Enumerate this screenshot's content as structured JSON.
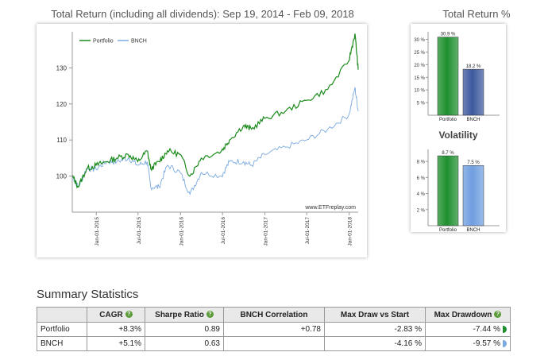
{
  "main_chart": {
    "title": "Total Return (including all dividends): Sep 19, 2014 - Feb 09, 2018",
    "watermark": "www.ETFreplay.com"
  },
  "side": {
    "total_return_title": "Total Return %",
    "volatility_title": "Volatility"
  },
  "chart_data": [
    {
      "type": "line",
      "title": "Total Return (including all dividends): Sep 19, 2014 - Feb 09, 2018",
      "x_ticks": [
        "Jan-01-2015",
        "Jul-01-2015",
        "Jan-01-2016",
        "Jul-01-2016",
        "Jan-01-2017",
        "Jul-01-2017",
        "Jan-01-2018"
      ],
      "y_ticks": [
        100,
        110,
        120,
        130
      ],
      "ylim": [
        90,
        140
      ],
      "xlim": [
        "2014-09-19",
        "2018-02-09"
      ],
      "legend": "top-left",
      "series": [
        {
          "name": "Portfolio",
          "color": "#1a8a1a",
          "points": [
            [
              "2014-09-19",
              100
            ],
            [
              "2014-10-15",
              97
            ],
            [
              "2014-11-20",
              102
            ],
            [
              "2014-12-31",
              103
            ],
            [
              "2015-02-15",
              104
            ],
            [
              "2015-03-31",
              105
            ],
            [
              "2015-05-20",
              106
            ],
            [
              "2015-06-30",
              104
            ],
            [
              "2015-08-10",
              107
            ],
            [
              "2015-08-25",
              102
            ],
            [
              "2015-09-30",
              104
            ],
            [
              "2015-11-05",
              107
            ],
            [
              "2015-12-31",
              106
            ],
            [
              "2016-02-11",
              100
            ],
            [
              "2016-03-31",
              105
            ],
            [
              "2016-06-27",
              107
            ],
            [
              "2016-07-31",
              110
            ],
            [
              "2016-09-30",
              114
            ],
            [
              "2016-11-04",
              113
            ],
            [
              "2016-12-31",
              116
            ],
            [
              "2017-03-31",
              118
            ],
            [
              "2017-06-30",
              121
            ],
            [
              "2017-09-30",
              124
            ],
            [
              "2017-12-31",
              132
            ],
            [
              "2018-01-26",
              139.5
            ],
            [
              "2018-02-09",
              129.5
            ]
          ]
        },
        {
          "name": "BNCH",
          "color": "#7aaadf",
          "points": [
            [
              "2014-09-19",
              100
            ],
            [
              "2014-10-15",
              97
            ],
            [
              "2014-11-20",
              102
            ],
            [
              "2014-12-31",
              102
            ],
            [
              "2015-02-15",
              104
            ],
            [
              "2015-03-31",
              104
            ],
            [
              "2015-05-20",
              105
            ],
            [
              "2015-06-30",
              103
            ],
            [
              "2015-08-10",
              104
            ],
            [
              "2015-08-25",
              97
            ],
            [
              "2015-09-30",
              97
            ],
            [
              "2015-11-05",
              103
            ],
            [
              "2015-12-31",
              101
            ],
            [
              "2016-02-11",
              95
            ],
            [
              "2016-03-31",
              101
            ],
            [
              "2016-06-27",
              100
            ],
            [
              "2016-07-31",
              104
            ],
            [
              "2016-09-30",
              104
            ],
            [
              "2016-11-04",
              103
            ],
            [
              "2016-12-31",
              106
            ],
            [
              "2017-03-31",
              108
            ],
            [
              "2017-06-30",
              110
            ],
            [
              "2017-09-30",
              113
            ],
            [
              "2017-12-31",
              117
            ],
            [
              "2018-01-26",
              124.5
            ],
            [
              "2018-02-09",
              118
            ]
          ]
        }
      ]
    },
    {
      "type": "bar",
      "title": "Total Return %",
      "categories": [
        "Portfolio",
        "BNCH"
      ],
      "values": [
        30.9,
        18.2
      ],
      "data_labels": [
        "30.9 %",
        "18.2 %"
      ],
      "y_ticks": [
        "5 %",
        "10 %",
        "15 %",
        "20 %",
        "25 %",
        "30 %"
      ],
      "tick_values": [
        5,
        10,
        15,
        20,
        25,
        30
      ],
      "ylim": [
        0,
        33
      ],
      "colors": [
        "#1f8f2e",
        "#3d5a9e"
      ]
    },
    {
      "type": "bar",
      "title": "Volatility",
      "categories": [
        "Portfolio",
        "BNCH"
      ],
      "values": [
        8.7,
        7.5
      ],
      "data_labels": [
        "8.7 %",
        "7.5 %"
      ],
      "y_ticks": [
        "2 %",
        "4 %",
        "6 %",
        "8 %"
      ],
      "tick_values": [
        2,
        4,
        6,
        8
      ],
      "ylim": [
        0,
        9.5
      ],
      "colors": [
        "#1f8f2e",
        "#6f9ee0"
      ]
    }
  ],
  "summary": {
    "heading": "Summary Statistics",
    "columns": [
      "",
      "CAGR",
      "Sharpe Ratio",
      "BNCH Correlation",
      "Max Draw vs Start",
      "Max Drawdown"
    ],
    "rows": [
      [
        "Portfolio",
        "+8.3%",
        "0.89",
        "+0.78",
        "-2.83 %",
        "-7.44 %"
      ],
      [
        "BNCH",
        "+5.1%",
        "0.63",
        "",
        "-4.16 %",
        "-9.57 %"
      ]
    ]
  }
}
